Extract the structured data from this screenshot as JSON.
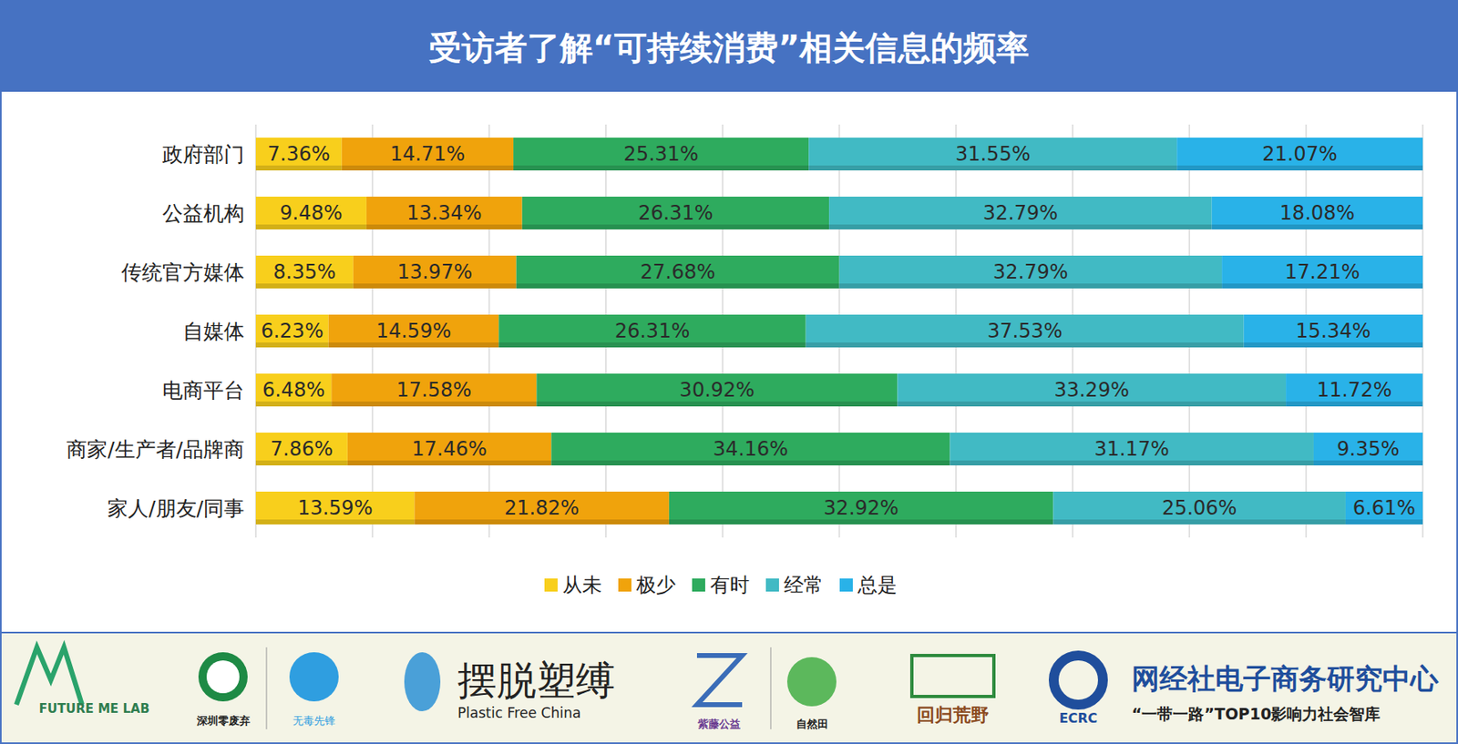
{
  "chart_data": {
    "type": "bar",
    "title": "受访者了解“可持续消费”相关信息的频率",
    "orientation": "horizontal",
    "stacked": true,
    "data_labels": true,
    "grid": true,
    "tick_labels": "y",
    "legend": "bottom",
    "categories": [
      "政府部门",
      "公益机构",
      "传统官方媒体",
      "自媒体",
      "电商平台",
      "商家/生产者/品牌商",
      "家人/朋友/同事"
    ],
    "xlim": [
      0,
      100
    ],
    "xticks": [
      0,
      10,
      20,
      30,
      40,
      50,
      60,
      70,
      80,
      90,
      100
    ],
    "series": [
      {
        "name": "从未",
        "color": "#f8cf1c",
        "values": [
          7.36,
          9.48,
          8.35,
          6.23,
          6.48,
          7.86,
          13.59
        ],
        "value_labels": [
          "7.36%",
          "9.48%",
          "8.35%",
          "6.23%",
          "6.48%",
          "7.86%",
          "13.59%"
        ]
      },
      {
        "name": "极少",
        "color": "#f0a30c",
        "values": [
          14.71,
          13.34,
          13.97,
          14.59,
          17.58,
          17.46,
          21.82
        ],
        "value_labels": [
          "14.71%",
          "13.34%",
          "13.97%",
          "14.59%",
          "17.58%",
          "17.46%",
          "21.82%"
        ]
      },
      {
        "name": "有时",
        "color": "#2eab5e",
        "values": [
          25.31,
          26.31,
          27.68,
          26.31,
          30.92,
          34.16,
          32.92
        ],
        "value_labels": [
          "25.31%",
          "26.31%",
          "27.68%",
          "26.31%",
          "30.92%",
          "34.16%",
          "32.92%"
        ]
      },
      {
        "name": "经常",
        "color": "#41bac4",
        "values": [
          31.55,
          32.79,
          32.79,
          37.53,
          33.29,
          31.17,
          25.06
        ],
        "value_labels": [
          "31.55%",
          "32.79%",
          "32.79%",
          "37.53%",
          "33.29%",
          "31.17%",
          "25.06%"
        ]
      },
      {
        "name": "总是",
        "color": "#29b2e8",
        "values": [
          21.07,
          18.08,
          17.21,
          15.34,
          11.72,
          9.35,
          6.61
        ],
        "value_labels": [
          "21.07%",
          "18.08%",
          "17.21%",
          "15.34%",
          "11.72%",
          "9.35%",
          "6.61%"
        ]
      }
    ]
  },
  "footer": [
    "FUTURE ME LAB",
    "深圳零废弃",
    "无毒先锋",
    "摆脱塑缚",
    "Plastic Free China",
    "紫藤公益",
    "自然田",
    "回归荒野",
    "ECRC",
    "网经社电子商务研究中心",
    "“一带一路”TOP10影响力社会智库"
  ]
}
